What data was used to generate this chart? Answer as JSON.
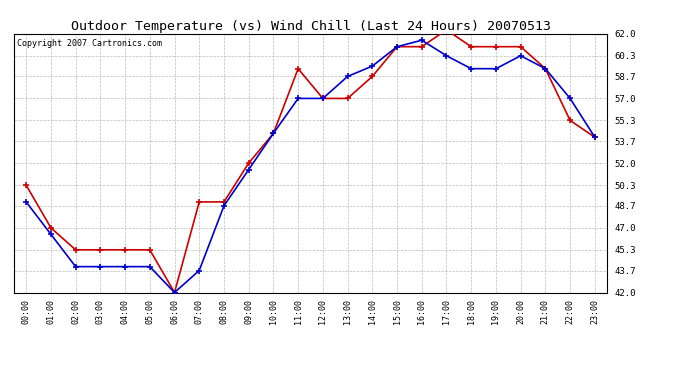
{
  "title": "Outdoor Temperature (vs) Wind Chill (Last 24 Hours) 20070513",
  "copyright": "Copyright 2007 Cartronics.com",
  "hours": [
    "00:00",
    "01:00",
    "02:00",
    "03:00",
    "04:00",
    "05:00",
    "06:00",
    "07:00",
    "08:00",
    "09:00",
    "10:00",
    "11:00",
    "12:00",
    "13:00",
    "14:00",
    "15:00",
    "16:00",
    "17:00",
    "18:00",
    "19:00",
    "20:00",
    "21:00",
    "22:00",
    "23:00"
  ],
  "temp": [
    50.3,
    47.0,
    45.3,
    45.3,
    45.3,
    45.3,
    42.0,
    49.0,
    49.0,
    52.0,
    54.3,
    59.3,
    57.0,
    57.0,
    58.7,
    61.0,
    61.0,
    62.3,
    61.0,
    61.0,
    61.0,
    59.3,
    55.3,
    54.0
  ],
  "windchill": [
    49.0,
    46.5,
    44.0,
    44.0,
    44.0,
    44.0,
    42.0,
    43.7,
    48.7,
    51.5,
    54.3,
    57.0,
    57.0,
    58.7,
    59.5,
    61.0,
    61.5,
    60.3,
    59.3,
    59.3,
    60.3,
    59.3,
    57.0,
    54.0
  ],
  "temp_color": "#cc0000",
  "windchill_color": "#0000cc",
  "bg_color": "#ffffff",
  "grid_color": "#bbbbbb",
  "ylim": [
    42.0,
    62.0
  ],
  "yticks": [
    42.0,
    43.7,
    45.3,
    47.0,
    48.7,
    50.3,
    52.0,
    53.7,
    55.3,
    57.0,
    58.7,
    60.3,
    62.0
  ],
  "title_fontsize": 9.5,
  "copyright_fontsize": 6,
  "marker": "+",
  "marker_size": 4,
  "linewidth": 1.2
}
